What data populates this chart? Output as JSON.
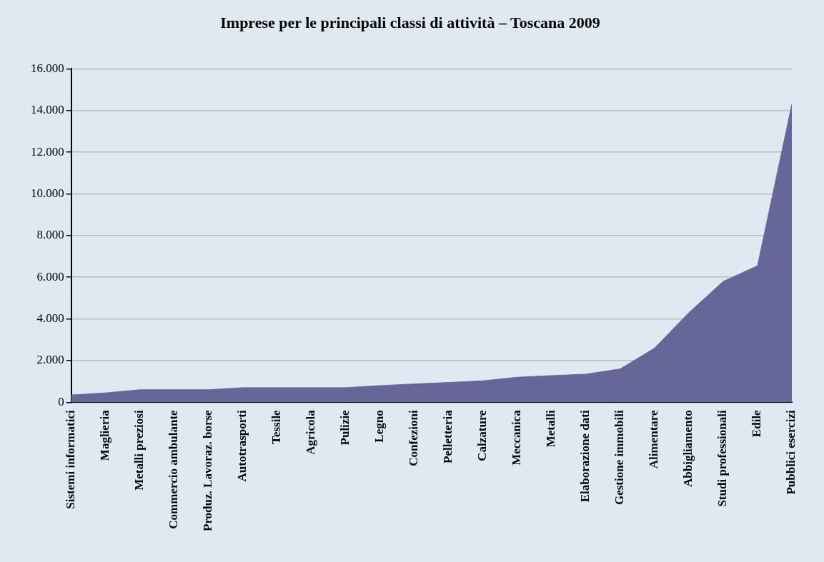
{
  "chart_data": {
    "type": "area",
    "title": "Imprese per le principali classi di attività – Toscana 2009",
    "categories": [
      "Sistemi informatici",
      "Maglieria",
      "Metalli preziosi",
      "Commercio ambulante",
      "Produz. Lavoraz. borse",
      "Autotrasporti",
      "Tessile",
      "Agricola",
      "Pulizie",
      "Legno",
      "Confezioni",
      "Pelletteria",
      "Calzature",
      "Meccanica",
      "Metalli",
      "Elaborazione dati",
      "Gestione immobili",
      "Alimentare",
      "Abbigliamento",
      "Studi professionali",
      "Edile",
      "Pubblici esercizi"
    ],
    "values": [
      350,
      450,
      600,
      600,
      600,
      700,
      700,
      700,
      700,
      800,
      880,
      950,
      1030,
      1200,
      1280,
      1350,
      1600,
      2600,
      4300,
      5800,
      6550,
      14300
    ],
    "color": "#666699",
    "ylim": [
      0,
      16000
    ],
    "yticks": [
      {
        "value": 0,
        "label": "0"
      },
      {
        "value": 2000,
        "label": "2.000"
      },
      {
        "value": 4000,
        "label": "4.000"
      },
      {
        "value": 6000,
        "label": "6.000"
      },
      {
        "value": 8000,
        "label": "8.000"
      },
      {
        "value": 10000,
        "label": "10.000"
      },
      {
        "value": 12000,
        "label": "12.000"
      },
      {
        "value": 14000,
        "label": "14.000"
      },
      {
        "value": 16000,
        "label": "16.000"
      }
    ],
    "grid": "y",
    "legend": false
  }
}
